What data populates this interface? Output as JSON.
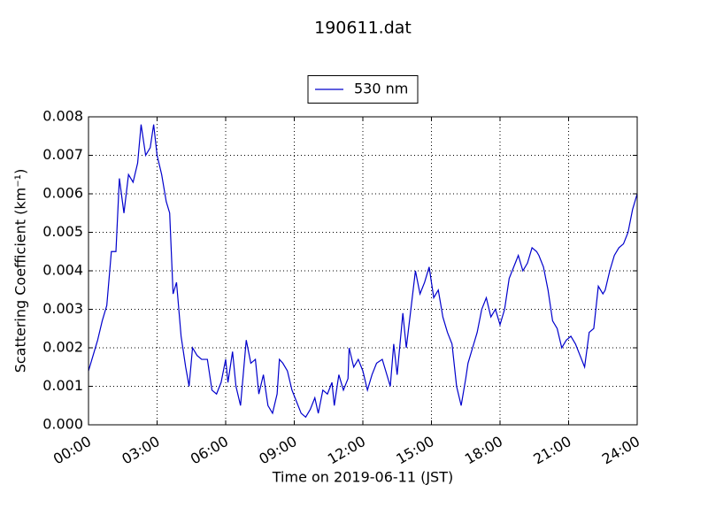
{
  "chart_data": {
    "type": "line",
    "title": "190611.dat",
    "x_label": "Time on 2019-06-11 (JST)",
    "y_label": "Scattering Coefficient (km⁻¹)",
    "legend": "upper center",
    "grid": true,
    "xlim": [
      0,
      24
    ],
    "ylim": [
      0,
      0.008
    ],
    "xticks": [
      {
        "value": 0,
        "label": "00:00"
      },
      {
        "value": 3,
        "label": "03:00"
      },
      {
        "value": 6,
        "label": "06:00"
      },
      {
        "value": 9,
        "label": "09:00"
      },
      {
        "value": 12,
        "label": "12:00"
      },
      {
        "value": 15,
        "label": "15:00"
      },
      {
        "value": 18,
        "label": "18:00"
      },
      {
        "value": 21,
        "label": "21:00"
      },
      {
        "value": 24,
        "label": "24:00"
      }
    ],
    "yticks": [
      {
        "value": 0,
        "label": "0.000"
      },
      {
        "value": 0.001,
        "label": "0.001"
      },
      {
        "value": 0.002,
        "label": "0.002"
      },
      {
        "value": 0.003,
        "label": "0.003"
      },
      {
        "value": 0.004,
        "label": "0.004"
      },
      {
        "value": 0.005,
        "label": "0.005"
      },
      {
        "value": 0.006,
        "label": "0.006"
      },
      {
        "value": 0.007,
        "label": "0.007"
      },
      {
        "value": 0.008,
        "label": "0.008"
      }
    ],
    "x": [
      0,
      0.2,
      0.4,
      0.6,
      0.8,
      1.0,
      1.2,
      1.35,
      1.55,
      1.75,
      1.95,
      2.15,
      2.3,
      2.5,
      2.7,
      2.85,
      3.0,
      3.2,
      3.4,
      3.55,
      3.7,
      3.85,
      4.05,
      4.25,
      4.4,
      4.55,
      4.75,
      4.95,
      5.2,
      5.4,
      5.6,
      5.8,
      6.0,
      6.1,
      6.3,
      6.45,
      6.65,
      6.9,
      7.1,
      7.3,
      7.45,
      7.65,
      7.85,
      8.05,
      8.25,
      8.35,
      8.5,
      8.7,
      8.9,
      9.1,
      9.3,
      9.5,
      9.7,
      9.9,
      10.05,
      10.25,
      10.45,
      10.65,
      10.75,
      10.95,
      11.15,
      11.35,
      11.4,
      11.6,
      11.8,
      12.0,
      12.2,
      12.4,
      12.6,
      12.85,
      13.2,
      13.35,
      13.5,
      13.75,
      13.9,
      14.1,
      14.3,
      14.5,
      14.7,
      14.9,
      15.1,
      15.3,
      15.5,
      15.7,
      15.9,
      16.1,
      16.3,
      16.5,
      16.6,
      16.8,
      17.0,
      17.2,
      17.4,
      17.6,
      17.8,
      18.0,
      18.2,
      18.4,
      18.6,
      18.8,
      19.0,
      19.2,
      19.4,
      19.6,
      19.7,
      19.9,
      20.1,
      20.3,
      20.5,
      20.7,
      20.9,
      21.1,
      21.3,
      21.5,
      21.7,
      21.9,
      22.1,
      22.3,
      22.5,
      22.6,
      22.8,
      23.0,
      23.2,
      23.4,
      23.6,
      23.8,
      24.0
    ],
    "series": [
      {
        "name": "530 nm",
        "color": "#0000cc",
        "values": [
          0.0014,
          0.0018,
          0.0022,
          0.0027,
          0.0031,
          0.0045,
          0.0045,
          0.0064,
          0.0055,
          0.0065,
          0.0063,
          0.0068,
          0.0078,
          0.007,
          0.0072,
          0.0078,
          0.007,
          0.0065,
          0.0058,
          0.0055,
          0.0034,
          0.0037,
          0.0023,
          0.0015,
          0.001,
          0.002,
          0.0018,
          0.0017,
          0.0017,
          0.0009,
          0.0008,
          0.0011,
          0.0017,
          0.0011,
          0.0019,
          0.001,
          0.0005,
          0.0022,
          0.0016,
          0.0017,
          0.0008,
          0.0013,
          0.0005,
          0.0003,
          0.0008,
          0.0017,
          0.0016,
          0.0014,
          0.0009,
          0.0006,
          0.0003,
          0.0002,
          0.0004,
          0.0007,
          0.0003,
          0.0009,
          0.0008,
          0.0011,
          0.0005,
          0.0013,
          0.0009,
          0.0012,
          0.002,
          0.0015,
          0.0017,
          0.0014,
          0.0009,
          0.0013,
          0.0016,
          0.0017,
          0.001,
          0.0021,
          0.0013,
          0.0029,
          0.002,
          0.003,
          0.004,
          0.0034,
          0.0037,
          0.0041,
          0.0033,
          0.0035,
          0.0028,
          0.0024,
          0.0021,
          0.001,
          0.0005,
          0.0012,
          0.0016,
          0.002,
          0.0024,
          0.003,
          0.0033,
          0.0028,
          0.003,
          0.0026,
          0.003,
          0.0038,
          0.0041,
          0.0044,
          0.004,
          0.0042,
          0.0046,
          0.0045,
          0.0044,
          0.0041,
          0.0035,
          0.0027,
          0.0025,
          0.002,
          0.0022,
          0.0023,
          0.0021,
          0.0018,
          0.0015,
          0.0024,
          0.0025,
          0.0036,
          0.0034,
          0.0035,
          0.004,
          0.0044,
          0.0046,
          0.0047,
          0.005,
          0.0056,
          0.006
        ]
      }
    ]
  }
}
